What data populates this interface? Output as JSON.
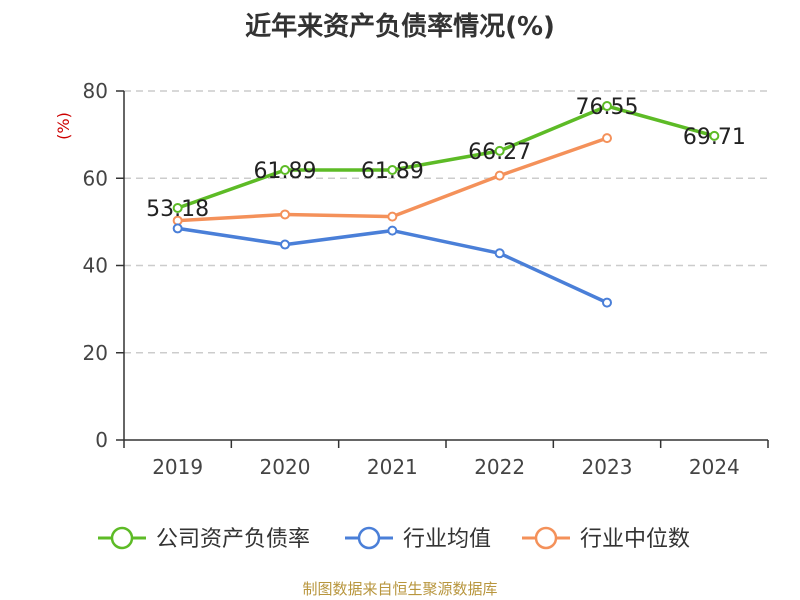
{
  "title": "近年来资产负债率情况(%)",
  "source": "制图数据来自恒生聚源数据库",
  "colors": {
    "company": "#5dbb26",
    "industry_avg": "#4a7fd8",
    "industry_median": "#f4915a",
    "ylabel": "#cc0000",
    "grid": "#cccccc",
    "axis": "#333333"
  },
  "chart_data": {
    "type": "line",
    "title": "近年来资产负债率情况(%)",
    "ylabel": "(%)",
    "xlabel": "",
    "ylim": [
      0,
      80
    ],
    "yticks": [
      0,
      20,
      40,
      60,
      80
    ],
    "categories": [
      "2019",
      "2020",
      "2021",
      "2022",
      "2023",
      "2024"
    ],
    "grid": "horizontal dashed",
    "legend_position": "bottom",
    "series": [
      {
        "name": "公司资产负债率",
        "color": "#5dbb26",
        "values": [
          53.18,
          61.89,
          61.89,
          66.27,
          76.55,
          69.71
        ],
        "labels": [
          "53.18",
          "61.89",
          "61.89",
          "66.27",
          "76.55",
          "69.71"
        ]
      },
      {
        "name": "行业均值",
        "color": "#4a7fd8",
        "values": [
          48.5,
          44.8,
          48.0,
          42.8,
          31.5,
          null
        ]
      },
      {
        "name": "行业中位数",
        "color": "#f4915a",
        "values": [
          50.3,
          51.7,
          51.2,
          60.6,
          69.2,
          null
        ]
      }
    ]
  }
}
